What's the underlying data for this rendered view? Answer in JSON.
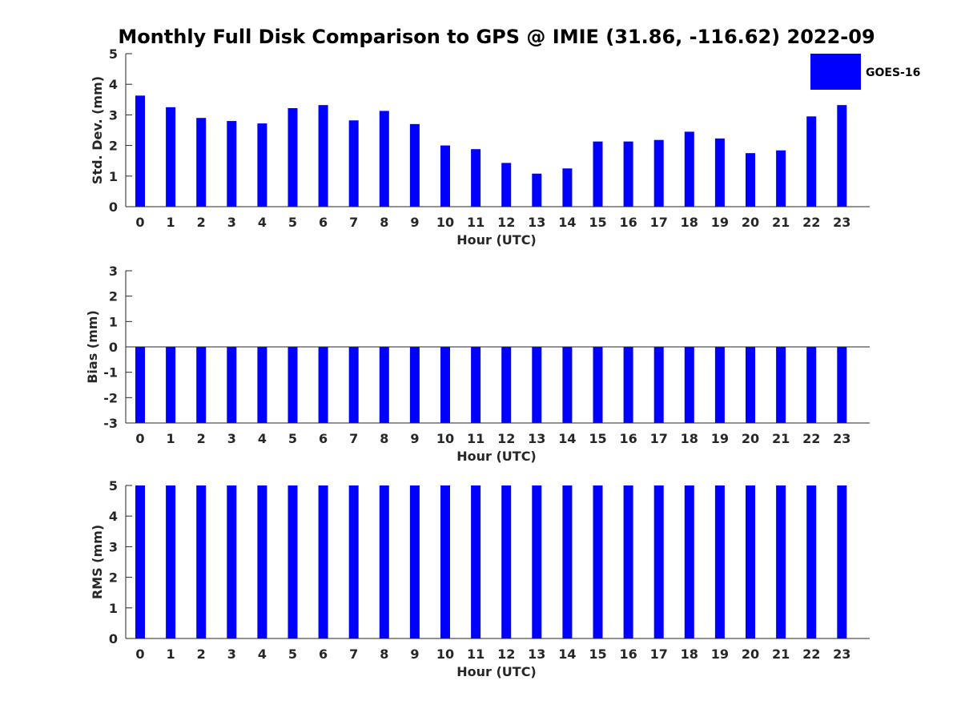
{
  "title": "Monthly Full Disk Comparison to GPS @ IMIE (31.86, -116.62) 2022-09",
  "legend": {
    "label": "GOES-16",
    "color": "#0000ff"
  },
  "chart_data": [
    {
      "type": "bar",
      "categories": [
        "0",
        "1",
        "2",
        "3",
        "4",
        "5",
        "6",
        "7",
        "8",
        "9",
        "10",
        "11",
        "12",
        "13",
        "14",
        "15",
        "16",
        "17",
        "18",
        "19",
        "20",
        "21",
        "22",
        "23"
      ],
      "series": [
        {
          "name": "GOES-16",
          "values": [
            3.63,
            3.25,
            2.9,
            2.8,
            2.72,
            3.22,
            3.32,
            2.82,
            3.13,
            2.7,
            2.0,
            1.88,
            1.43,
            1.08,
            1.25,
            2.13,
            2.13,
            2.18,
            2.45,
            2.23,
            1.75,
            1.84,
            2.95,
            3.32
          ]
        }
      ],
      "xlabel": "Hour (UTC)",
      "ylabel": "Std. Dev. (mm)",
      "ylim": [
        0,
        5
      ],
      "yticks": [
        "0",
        "1",
        "2",
        "3",
        "4",
        "5"
      ]
    },
    {
      "type": "bar",
      "categories": [
        "0",
        "1",
        "2",
        "3",
        "4",
        "5",
        "6",
        "7",
        "8",
        "9",
        "10",
        "11",
        "12",
        "13",
        "14",
        "15",
        "16",
        "17",
        "18",
        "19",
        "20",
        "21",
        "22",
        "23"
      ],
      "series": [
        {
          "name": "GOES-16",
          "values": [
            -3,
            -3,
            -3,
            -3,
            -3,
            -3,
            -3,
            -3,
            -3,
            -3,
            -3,
            -3,
            -3,
            -3,
            -3,
            -3,
            -3,
            -3,
            -3,
            -3,
            -3,
            -3,
            -3,
            -3
          ]
        }
      ],
      "xlabel": "Hour (UTC)",
      "ylabel": "Bias (mm)",
      "ylim": [
        -3,
        3
      ],
      "yticks": [
        "-3",
        "-2",
        "-1",
        "0",
        "1",
        "2",
        "3"
      ]
    },
    {
      "type": "bar",
      "categories": [
        "0",
        "1",
        "2",
        "3",
        "4",
        "5",
        "6",
        "7",
        "8",
        "9",
        "10",
        "11",
        "12",
        "13",
        "14",
        "15",
        "16",
        "17",
        "18",
        "19",
        "20",
        "21",
        "22",
        "23"
      ],
      "series": [
        {
          "name": "GOES-16",
          "values": [
            5,
            5,
            5,
            5,
            5,
            5,
            5,
            5,
            5,
            5,
            5,
            5,
            5,
            5,
            5,
            5,
            5,
            5,
            5,
            5,
            5,
            5,
            5,
            5
          ]
        }
      ],
      "xlabel": "Hour (UTC)",
      "ylabel": "RMS (mm)",
      "ylim": [
        0,
        5
      ],
      "yticks": [
        "0",
        "1",
        "2",
        "3",
        "4",
        "5"
      ]
    }
  ]
}
